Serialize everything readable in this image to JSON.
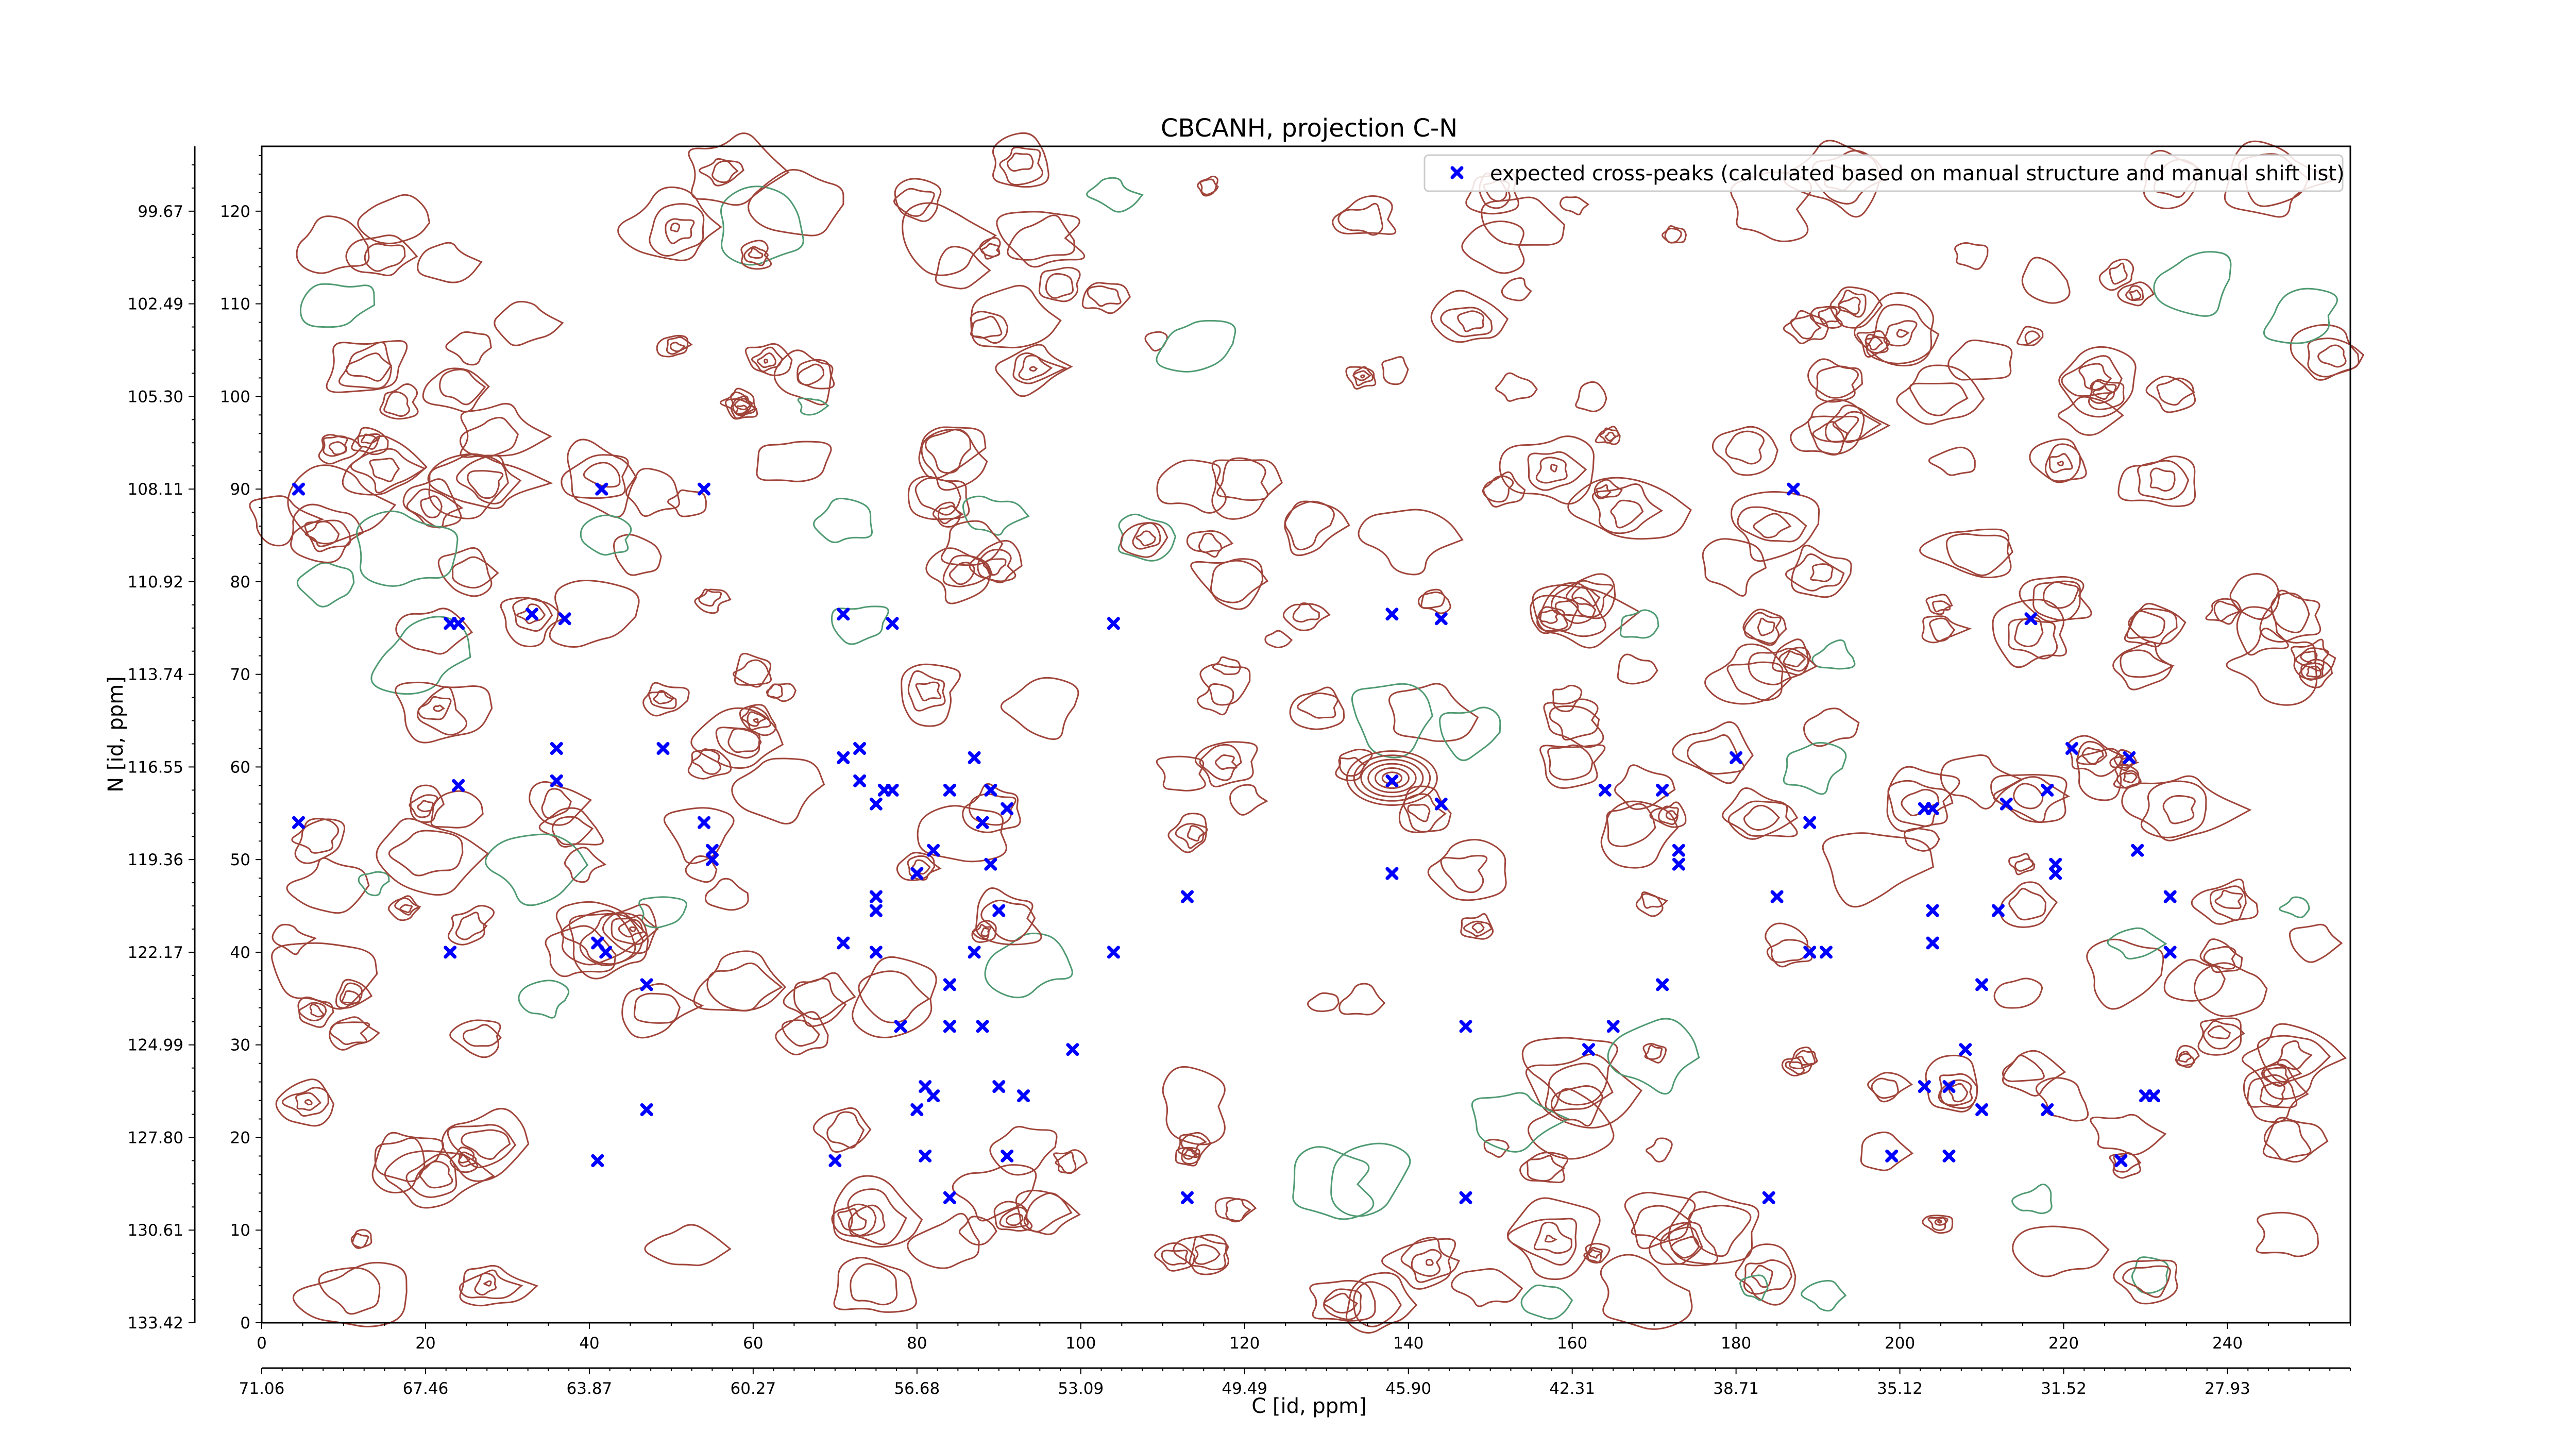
{
  "chart_data": {
    "type": "scatter",
    "title": "CBCANH, projection C-N",
    "xlabel": "C [id, ppm]",
    "ylabel": "N [id, ppm]",
    "xlim": [
      0,
      255
    ],
    "ylim": [
      0,
      127
    ],
    "x_ticks": [
      0,
      20,
      40,
      60,
      80,
      100,
      120,
      140,
      160,
      180,
      200,
      220,
      240
    ],
    "y_ticks": [
      0,
      10,
      20,
      30,
      40,
      50,
      60,
      70,
      80,
      90,
      100,
      110,
      120
    ],
    "x_ppm_ticks": [
      {
        "x": 0,
        "label": "71.06"
      },
      {
        "x": 20,
        "label": "67.46"
      },
      {
        "x": 40,
        "label": "63.87"
      },
      {
        "x": 60,
        "label": "60.27"
      },
      {
        "x": 80,
        "label": "56.68"
      },
      {
        "x": 100,
        "label": "53.09"
      },
      {
        "x": 120,
        "label": "49.49"
      },
      {
        "x": 140,
        "label": "45.90"
      },
      {
        "x": 160,
        "label": "42.31"
      },
      {
        "x": 180,
        "label": "38.71"
      },
      {
        "x": 200,
        "label": "35.12"
      },
      {
        "x": 220,
        "label": "31.52"
      },
      {
        "x": 240,
        "label": "27.93"
      }
    ],
    "y_ppm_ticks": [
      {
        "y": 0,
        "label": "133.42"
      },
      {
        "y": 10,
        "label": "130.61"
      },
      {
        "y": 20,
        "label": "127.80"
      },
      {
        "y": 30,
        "label": "124.99"
      },
      {
        "y": 40,
        "label": "122.17"
      },
      {
        "y": 50,
        "label": "119.36"
      },
      {
        "y": 60,
        "label": "116.55"
      },
      {
        "y": 70,
        "label": "113.74"
      },
      {
        "y": 80,
        "label": "110.92"
      },
      {
        "y": 90,
        "label": "108.11"
      },
      {
        "y": 100,
        "label": "105.30"
      },
      {
        "y": 110,
        "label": "102.49"
      },
      {
        "y": 120,
        "label": "99.67"
      }
    ],
    "legend_position": "top-right",
    "series": [
      {
        "name": "expected cross-peaks (calculated based on manual structure and manual shift list)",
        "color": "#0000ff",
        "marker": "x",
        "points": [
          [
            4.5,
            90
          ],
          [
            41.5,
            90
          ],
          [
            54,
            90
          ],
          [
            187,
            90
          ],
          [
            23,
            75.5
          ],
          [
            24,
            75.5
          ],
          [
            33,
            76.5
          ],
          [
            37,
            76
          ],
          [
            71,
            76.5
          ],
          [
            77,
            75.5
          ],
          [
            104,
            75.5
          ],
          [
            138,
            76.5
          ],
          [
            144,
            76
          ],
          [
            216,
            76
          ],
          [
            36,
            62
          ],
          [
            49,
            62
          ],
          [
            71,
            61
          ],
          [
            73,
            62
          ],
          [
            87,
            61
          ],
          [
            221,
            62
          ],
          [
            228,
            61
          ],
          [
            24,
            58
          ],
          [
            36,
            58.5
          ],
          [
            73,
            58.5
          ],
          [
            76,
            57.5
          ],
          [
            77,
            57.5
          ],
          [
            84,
            57.5
          ],
          [
            89,
            57.5
          ],
          [
            138,
            58.5
          ],
          [
            164,
            57.5
          ],
          [
            171,
            57.5
          ],
          [
            180,
            61
          ],
          [
            213,
            56
          ],
          [
            218,
            57.5
          ],
          [
            4.5,
            54
          ],
          [
            54,
            54
          ],
          [
            75,
            56
          ],
          [
            88,
            54
          ],
          [
            91,
            55.5
          ],
          [
            144,
            56
          ],
          [
            189,
            54
          ],
          [
            203,
            55.5
          ],
          [
            204,
            55.5
          ],
          [
            55,
            51
          ],
          [
            55,
            50
          ],
          [
            82,
            51
          ],
          [
            89,
            49.5
          ],
          [
            173,
            51
          ],
          [
            173,
            49.5
          ],
          [
            219,
            49.5
          ],
          [
            219,
            48.5
          ],
          [
            229,
            51
          ],
          [
            80,
            48.5
          ],
          [
            138,
            48.5
          ],
          [
            75,
            46
          ],
          [
            90,
            44.5
          ],
          [
            113,
            46
          ],
          [
            185,
            46
          ],
          [
            204,
            44.5
          ],
          [
            212,
            44.5
          ],
          [
            233,
            46
          ],
          [
            75,
            44.5
          ],
          [
            23,
            40
          ],
          [
            41,
            41
          ],
          [
            42,
            40
          ],
          [
            71,
            41
          ],
          [
            75,
            40
          ],
          [
            87,
            40
          ],
          [
            104,
            40
          ],
          [
            189,
            40
          ],
          [
            191,
            40
          ],
          [
            204,
            41
          ],
          [
            233,
            40
          ],
          [
            47,
            36.5
          ],
          [
            84,
            36.5
          ],
          [
            171,
            36.5
          ],
          [
            210,
            36.5
          ],
          [
            78,
            32
          ],
          [
            84,
            32
          ],
          [
            88,
            32
          ],
          [
            147,
            32
          ],
          [
            165,
            32
          ],
          [
            99,
            29.5
          ],
          [
            162,
            29.5
          ],
          [
            208,
            29.5
          ],
          [
            81,
            25.5
          ],
          [
            82,
            24.5
          ],
          [
            90,
            25.5
          ],
          [
            93,
            24.5
          ],
          [
            203,
            25.5
          ],
          [
            206,
            25.5
          ],
          [
            230,
            24.5
          ],
          [
            231,
            24.5
          ],
          [
            47,
            23
          ],
          [
            80,
            23
          ],
          [
            210,
            23
          ],
          [
            218,
            23
          ],
          [
            41,
            17.5
          ],
          [
            70,
            17.5
          ],
          [
            81,
            18
          ],
          [
            91,
            18
          ],
          [
            199,
            18
          ],
          [
            206,
            18
          ],
          [
            227,
            17.5
          ],
          [
            84,
            13.5
          ],
          [
            113,
            13.5
          ],
          [
            147,
            13.5
          ],
          [
            184,
            13.5
          ]
        ]
      }
    ]
  }
}
